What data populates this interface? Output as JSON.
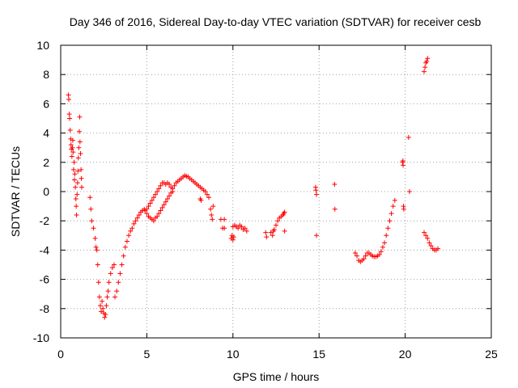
{
  "chart_data": {
    "type": "scatter",
    "title": "Day 346 of 2016, Sidereal Day-to-day VTEC variation (SDTVAR) for receiver cesb",
    "xlabel": "GPS time / hours",
    "ylabel": "SDTVAR / TECUs",
    "xlim": [
      0,
      25
    ],
    "ylim": [
      -10,
      10
    ],
    "xticks": [
      0,
      5,
      10,
      15,
      20,
      25
    ],
    "yticks": [
      -10,
      -8,
      -6,
      -4,
      -2,
      0,
      2,
      4,
      6,
      8,
      10
    ],
    "grid": true,
    "marker": "+",
    "color": "#ff0000",
    "series": [
      {
        "name": "SDTVAR",
        "points": [
          [
            0.45,
            6.6
          ],
          [
            0.47,
            6.3
          ],
          [
            0.5,
            5.3
          ],
          [
            0.52,
            5.0
          ],
          [
            0.55,
            4.2
          ],
          [
            0.58,
            3.6
          ],
          [
            0.6,
            3.2
          ],
          [
            0.62,
            2.9
          ],
          [
            0.65,
            2.4
          ],
          [
            0.68,
            3.0
          ],
          [
            0.7,
            3.5
          ],
          [
            0.72,
            2.7
          ],
          [
            0.75,
            1.5
          ],
          [
            0.78,
            2.0
          ],
          [
            0.8,
            0.8
          ],
          [
            0.82,
            1.2
          ],
          [
            0.85,
            0.3
          ],
          [
            0.88,
            -0.5
          ],
          [
            0.9,
            -1.0
          ],
          [
            0.92,
            -1.6
          ],
          [
            0.95,
            -0.2
          ],
          [
            0.98,
            0.6
          ],
          [
            1.0,
            1.4
          ],
          [
            1.02,
            2.3
          ],
          [
            1.05,
            3.0
          ],
          [
            1.08,
            4.1
          ],
          [
            1.1,
            5.1
          ],
          [
            1.12,
            3.4
          ],
          [
            1.15,
            2.6
          ],
          [
            1.18,
            1.5
          ],
          [
            1.2,
            0.9
          ],
          [
            1.22,
            0.3
          ],
          [
            1.7,
            -0.4
          ],
          [
            1.75,
            -1.2
          ],
          [
            1.8,
            -2.0
          ],
          [
            1.9,
            -2.5
          ],
          [
            2.0,
            -3.2
          ],
          [
            2.05,
            -3.8
          ],
          [
            2.1,
            -4.0
          ],
          [
            2.15,
            -5.0
          ],
          [
            2.2,
            -6.2
          ],
          [
            2.25,
            -7.2
          ],
          [
            2.3,
            -7.8
          ],
          [
            2.35,
            -8.2
          ],
          [
            2.4,
            -7.5
          ],
          [
            2.45,
            -8.0
          ],
          [
            2.5,
            -8.3
          ],
          [
            2.55,
            -8.6
          ],
          [
            2.6,
            -8.4
          ],
          [
            2.65,
            -7.8
          ],
          [
            2.7,
            -7.2
          ],
          [
            2.75,
            -6.8
          ],
          [
            2.8,
            -6.2
          ],
          [
            2.9,
            -5.6
          ],
          [
            3.0,
            -5.2
          ],
          [
            3.1,
            -5.0
          ],
          [
            3.15,
            -7.2
          ],
          [
            3.25,
            -6.8
          ],
          [
            3.35,
            -6.2
          ],
          [
            3.45,
            -5.6
          ],
          [
            3.55,
            -5.0
          ],
          [
            3.65,
            -4.4
          ],
          [
            3.75,
            -3.8
          ],
          [
            3.85,
            -3.4
          ],
          [
            3.95,
            -3.0
          ],
          [
            4.05,
            -2.7
          ],
          [
            4.15,
            -2.5
          ],
          [
            4.25,
            -2.2
          ],
          [
            4.35,
            -2.0
          ],
          [
            4.45,
            -1.8
          ],
          [
            4.55,
            -1.6
          ],
          [
            4.65,
            -1.4
          ],
          [
            4.75,
            -1.3
          ],
          [
            4.85,
            -1.2
          ],
          [
            4.9,
            -1.3
          ],
          [
            5.0,
            -1.2
          ],
          [
            5.1,
            -1.0
          ],
          [
            5.2,
            -0.8
          ],
          [
            5.3,
            -0.6
          ],
          [
            5.4,
            -0.4
          ],
          [
            5.5,
            -0.2
          ],
          [
            5.6,
            0.0
          ],
          [
            5.7,
            0.2
          ],
          [
            5.8,
            0.4
          ],
          [
            5.9,
            0.6
          ],
          [
            6.0,
            0.6
          ],
          [
            6.1,
            0.5
          ],
          [
            6.2,
            0.6
          ],
          [
            6.3,
            0.5
          ],
          [
            6.4,
            0.3
          ],
          [
            6.5,
            0.0
          ],
          [
            5.0,
            -1.5
          ],
          [
            5.1,
            -1.7
          ],
          [
            5.2,
            -1.8
          ],
          [
            5.3,
            -1.9
          ],
          [
            5.4,
            -2.0
          ],
          [
            5.5,
            -1.8
          ],
          [
            5.6,
            -1.7
          ],
          [
            5.7,
            -1.5
          ],
          [
            5.8,
            -1.3
          ],
          [
            5.9,
            -1.1
          ],
          [
            6.0,
            -0.9
          ],
          [
            6.1,
            -0.7
          ],
          [
            6.2,
            -0.5
          ],
          [
            6.3,
            -0.3
          ],
          [
            6.4,
            -0.1
          ],
          [
            6.5,
            0.2
          ],
          [
            6.6,
            0.4
          ],
          [
            6.7,
            0.6
          ],
          [
            6.8,
            0.7
          ],
          [
            6.9,
            0.8
          ],
          [
            7.0,
            0.9
          ],
          [
            7.1,
            1.0
          ],
          [
            7.2,
            1.1
          ],
          [
            7.3,
            1.05
          ],
          [
            7.4,
            1.0
          ],
          [
            7.5,
            0.9
          ],
          [
            7.6,
            0.8
          ],
          [
            7.7,
            0.7
          ],
          [
            7.8,
            0.6
          ],
          [
            7.9,
            0.5
          ],
          [
            8.0,
            0.4
          ],
          [
            8.1,
            0.3
          ],
          [
            8.2,
            0.2
          ],
          [
            8.3,
            0.1
          ],
          [
            8.4,
            0.0
          ],
          [
            8.5,
            -0.2
          ],
          [
            8.6,
            -0.4
          ],
          [
            8.1,
            -0.5
          ],
          [
            8.15,
            -0.6
          ],
          [
            8.7,
            -1.2
          ],
          [
            8.75,
            -1.6
          ],
          [
            8.8,
            -1.9
          ],
          [
            8.85,
            -1.0
          ],
          [
            9.3,
            -1.9
          ],
          [
            9.5,
            -1.9
          ],
          [
            9.4,
            -2.5
          ],
          [
            9.5,
            -2.5
          ],
          [
            9.9,
            -3.2
          ],
          [
            9.95,
            -3.0
          ],
          [
            10.0,
            -3.3
          ],
          [
            10.05,
            -3.1
          ],
          [
            10.0,
            -2.4
          ],
          [
            10.1,
            -2.3
          ],
          [
            10.2,
            -2.4
          ],
          [
            10.3,
            -2.5
          ],
          [
            10.4,
            -2.3
          ],
          [
            10.5,
            -2.4
          ],
          [
            10.6,
            -2.6
          ],
          [
            10.7,
            -2.5
          ],
          [
            10.8,
            -2.7
          ],
          [
            11.9,
            -2.8
          ],
          [
            11.95,
            -3.1
          ],
          [
            12.2,
            -2.8
          ],
          [
            12.3,
            -3.0
          ],
          [
            12.35,
            -2.7
          ],
          [
            12.4,
            -2.6
          ],
          [
            12.5,
            -2.3
          ],
          [
            12.6,
            -2.0
          ],
          [
            12.7,
            -1.8
          ],
          [
            12.8,
            -1.7
          ],
          [
            12.9,
            -1.6
          ],
          [
            12.95,
            -1.5
          ],
          [
            13.0,
            -1.4
          ],
          [
            13.0,
            -2.7
          ],
          [
            14.8,
            0.3
          ],
          [
            14.82,
            0.1
          ],
          [
            14.85,
            -0.2
          ],
          [
            14.85,
            -3.0
          ],
          [
            15.9,
            0.5
          ],
          [
            15.92,
            -1.2
          ],
          [
            17.1,
            -4.2
          ],
          [
            17.2,
            -4.4
          ],
          [
            17.3,
            -4.7
          ],
          [
            17.4,
            -4.8
          ],
          [
            17.5,
            -4.7
          ],
          [
            17.6,
            -4.6
          ],
          [
            17.7,
            -4.4
          ],
          [
            17.8,
            -4.2
          ],
          [
            17.9,
            -4.2
          ],
          [
            18.0,
            -4.3
          ],
          [
            18.1,
            -4.4
          ],
          [
            18.2,
            -4.45
          ],
          [
            18.3,
            -4.45
          ],
          [
            18.4,
            -4.4
          ],
          [
            18.5,
            -4.3
          ],
          [
            18.6,
            -4.1
          ],
          [
            18.7,
            -3.8
          ],
          [
            18.8,
            -3.5
          ],
          [
            18.9,
            -3.0
          ],
          [
            19.0,
            -2.5
          ],
          [
            19.1,
            -2.0
          ],
          [
            19.2,
            -1.5
          ],
          [
            19.3,
            -1.0
          ],
          [
            19.4,
            -0.6
          ],
          [
            19.85,
            2.0
          ],
          [
            19.87,
            2.1
          ],
          [
            19.88,
            1.8
          ],
          [
            19.9,
            -1.0
          ],
          [
            19.92,
            -1.2
          ],
          [
            20.2,
            3.7
          ],
          [
            20.25,
            0.0
          ],
          [
            21.1,
            8.2
          ],
          [
            21.15,
            8.5
          ],
          [
            21.2,
            8.8
          ],
          [
            21.25,
            8.9
          ],
          [
            21.3,
            9.1
          ],
          [
            21.1,
            -2.8
          ],
          [
            21.2,
            -3.0
          ],
          [
            21.3,
            -3.2
          ],
          [
            21.4,
            -3.5
          ],
          [
            21.5,
            -3.7
          ],
          [
            21.6,
            -3.9
          ],
          [
            21.7,
            -4.0
          ],
          [
            21.8,
            -4.0
          ],
          [
            21.9,
            -3.9
          ]
        ]
      }
    ]
  }
}
